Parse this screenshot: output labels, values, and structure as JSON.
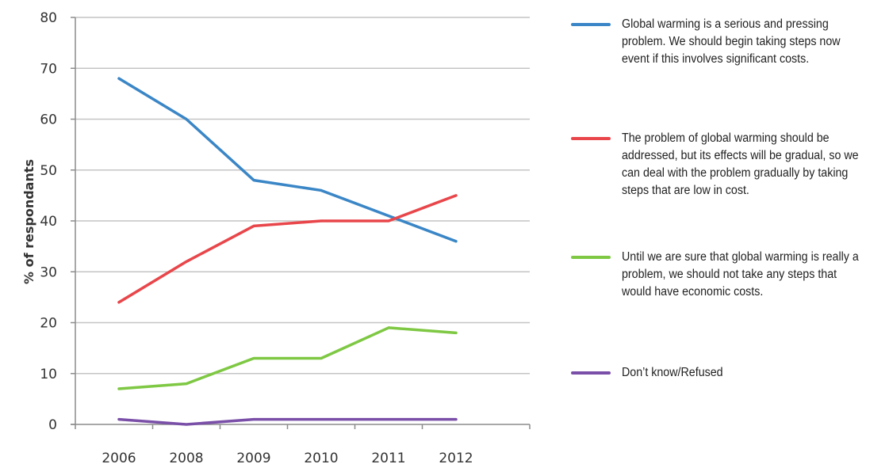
{
  "chart_data": {
    "type": "line",
    "categories": [
      "2006",
      "2008",
      "2009",
      "2010",
      "2011",
      "2012"
    ],
    "ylabel": "% of respondants",
    "ylim": [
      0,
      80
    ],
    "yticks": [
      0,
      10,
      20,
      30,
      40,
      50,
      60,
      70,
      80
    ],
    "grid": true,
    "legend_position": "right",
    "series": [
      {
        "name": "Global warming is a serious and pressing problem. We should begin taking steps now event if this involves significant costs.",
        "color": "#3a86c6",
        "values": [
          68,
          60,
          48,
          46,
          41,
          36
        ]
      },
      {
        "name": "The problem of global warming should be addressed, but its effects will be gradual, so we can deal with the problem gradually by taking steps that are low in cost.",
        "color": "#e8464a",
        "values": [
          24,
          32,
          39,
          40,
          40,
          45
        ]
      },
      {
        "name": "Until we are sure that global warming is really a problem, we should not take any steps that would have economic costs.",
        "color": "#7ec843",
        "values": [
          7,
          8,
          13,
          13,
          19,
          18
        ]
      },
      {
        "name": "Don’t know/Refused",
        "color": "#7a4fa8",
        "values": [
          1,
          0,
          1,
          1,
          1,
          1
        ]
      }
    ]
  }
}
